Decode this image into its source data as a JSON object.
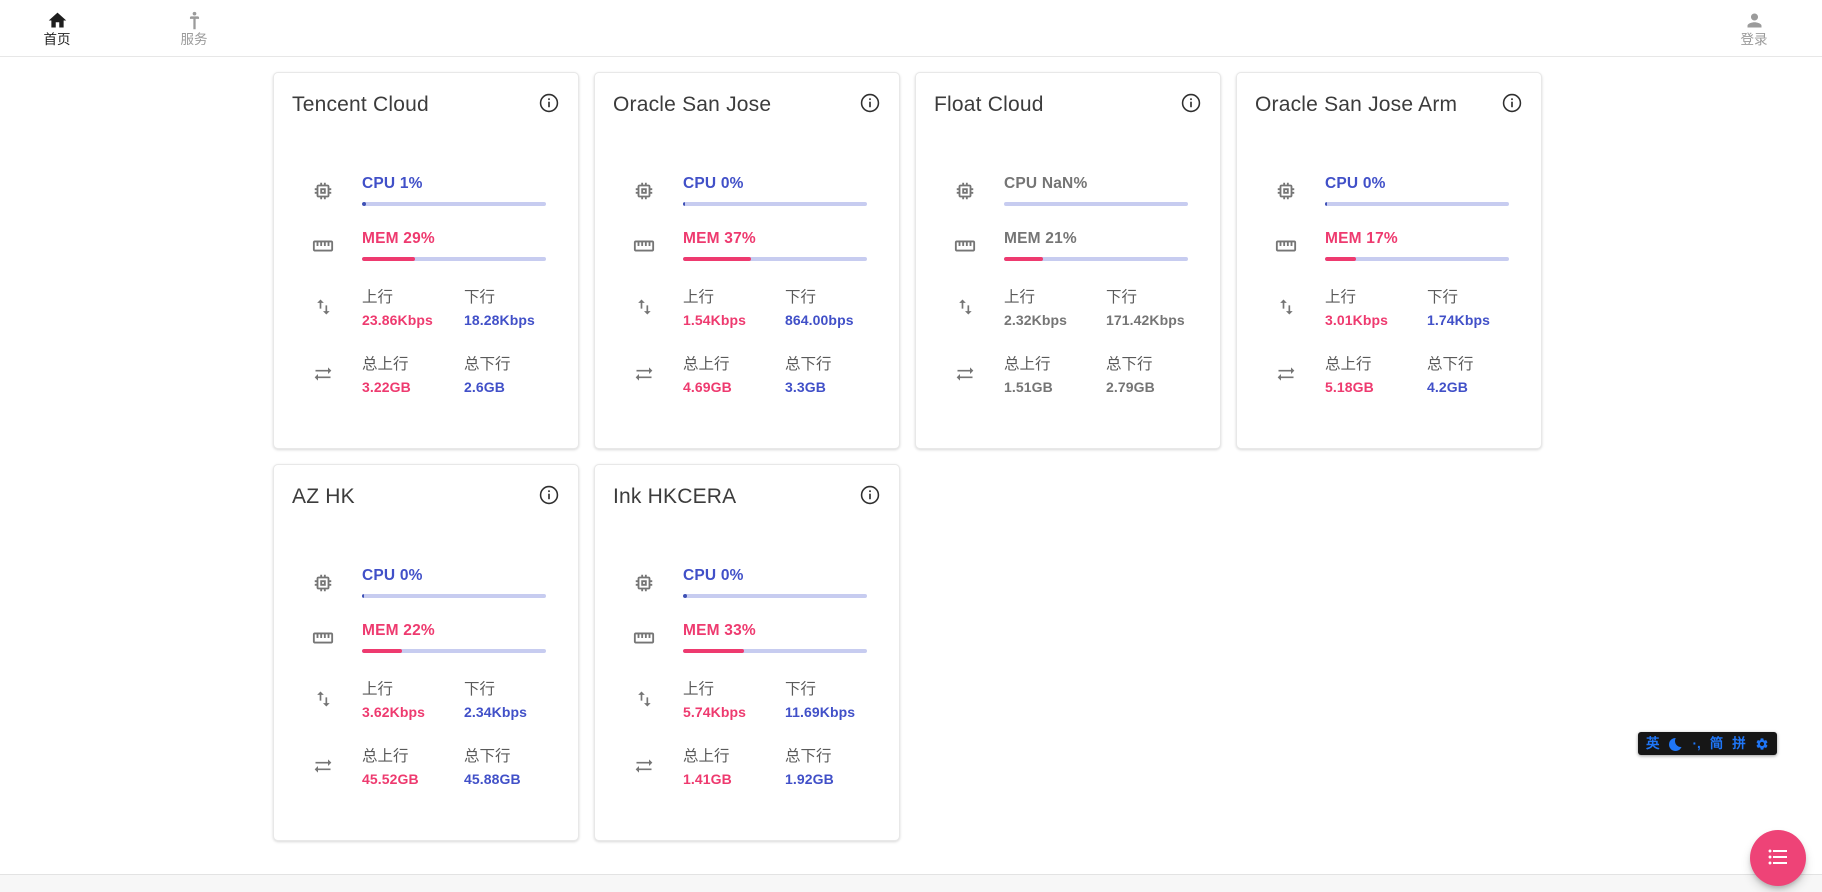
{
  "nav": {
    "home": {
      "label": "首页"
    },
    "services": {
      "label": "服务"
    },
    "login": {
      "label": "登录"
    }
  },
  "labels": {
    "upload": "上行",
    "download": "下行",
    "total_upload": "总上行",
    "total_download": "总下行"
  },
  "servers": [
    {
      "name": "Tencent Cloud",
      "cpu_text": "CPU 1%",
      "cpu_bar_pct": 2,
      "mem_text": "MEM 29%",
      "mem_pct": 29,
      "upload": "23.86Kbps",
      "download": "18.28Kbps",
      "total_upload": "3.22GB",
      "total_download": "2.6GB",
      "muted": false
    },
    {
      "name": "Oracle San Jose",
      "cpu_text": "CPU 0%",
      "cpu_bar_pct": 1,
      "mem_text": "MEM 37%",
      "mem_pct": 37,
      "upload": "1.54Kbps",
      "download": "864.00bps",
      "total_upload": "4.69GB",
      "total_download": "3.3GB",
      "muted": false
    },
    {
      "name": "Float Cloud",
      "cpu_text": "CPU NaN%",
      "cpu_bar_pct": 0,
      "mem_text": "MEM 21%",
      "mem_pct": 21,
      "upload": "2.32Kbps",
      "download": "171.42Kbps",
      "total_upload": "1.51GB",
      "total_download": "2.79GB",
      "muted": true
    },
    {
      "name": "Oracle San Jose Arm",
      "cpu_text": "CPU 0%",
      "cpu_bar_pct": 1,
      "mem_text": "MEM 17%",
      "mem_pct": 17,
      "upload": "3.01Kbps",
      "download": "1.74Kbps",
      "total_upload": "5.18GB",
      "total_download": "4.2GB",
      "muted": false
    },
    {
      "name": "AZ HK",
      "cpu_text": "CPU 0%",
      "cpu_bar_pct": 1,
      "mem_text": "MEM 22%",
      "mem_pct": 22,
      "upload": "3.62Kbps",
      "download": "2.34Kbps",
      "total_upload": "45.52GB",
      "total_download": "45.88GB",
      "muted": false
    },
    {
      "name": "Ink HKCERA",
      "cpu_text": "CPU 0%",
      "cpu_bar_pct": 2,
      "mem_text": "MEM 33%",
      "mem_pct": 33,
      "upload": "5.74Kbps",
      "download": "11.69Kbps",
      "total_upload": "1.41GB",
      "total_download": "1.92GB",
      "muted": false
    }
  ],
  "ime_bar": {
    "english": "英",
    "punctuation": "·,",
    "simplified": "简",
    "pinyin": "拼"
  },
  "colors": {
    "accent_pink": "#ee3a6f",
    "accent_blue": "#4150c8",
    "bar_track": "#c7ccf0",
    "cpu_bar_fill": "#3f51b5",
    "fab_pink": "#ee4377",
    "ime_bg": "#161616",
    "ime_blue": "#1f76f7"
  }
}
